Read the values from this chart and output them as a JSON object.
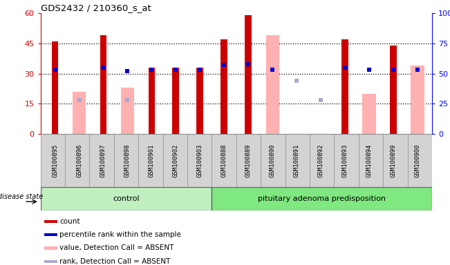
{
  "title": "GDS2432 / 210360_s_at",
  "samples": [
    "GSM100895",
    "GSM100896",
    "GSM100897",
    "GSM100898",
    "GSM100901",
    "GSM100902",
    "GSM100903",
    "GSM100888",
    "GSM100889",
    "GSM100890",
    "GSM100891",
    "GSM100892",
    "GSM100893",
    "GSM100894",
    "GSM100899",
    "GSM100900"
  ],
  "red_bars": [
    46,
    null,
    49,
    null,
    33,
    33,
    33,
    47,
    59,
    null,
    null,
    null,
    47,
    null,
    44,
    null
  ],
  "pink_bars": [
    null,
    21,
    null,
    23,
    null,
    null,
    null,
    null,
    null,
    49,
    null,
    null,
    null,
    20,
    null,
    34
  ],
  "blue_squares_pct": [
    53,
    null,
    55,
    52,
    53,
    53,
    53,
    57,
    58,
    53,
    null,
    null,
    55,
    53,
    53,
    53
  ],
  "lightblue_squares_pct": [
    null,
    28,
    null,
    28,
    null,
    null,
    null,
    null,
    null,
    null,
    44,
    28,
    null,
    null,
    null,
    null
  ],
  "ylim_left": [
    0,
    60
  ],
  "ylim_right": [
    0,
    100
  ],
  "yticks_left": [
    0,
    15,
    30,
    45,
    60
  ],
  "ytick_labels_left": [
    "0",
    "15",
    "30",
    "45",
    "60"
  ],
  "yticks_right": [
    0,
    25,
    50,
    75,
    100
  ],
  "ytick_labels_right": [
    "0",
    "25",
    "50",
    "75",
    "100%"
  ],
  "control_count": 7,
  "disease_count": 9,
  "red_color": "#cc0000",
  "pink_color": "#ffb0b0",
  "blue_color": "#0000cc",
  "lightblue_color": "#aaaacc",
  "gray_bg": "#d3d3d3",
  "control_color": "#c0f0c0",
  "disease_color": "#80e880",
  "legend_labels": [
    "count",
    "percentile rank within the sample",
    "value, Detection Call = ABSENT",
    "rank, Detection Call = ABSENT"
  ],
  "legend_colors": [
    "#cc0000",
    "#0000cc",
    "#ffb0b0",
    "#aaaacc"
  ]
}
